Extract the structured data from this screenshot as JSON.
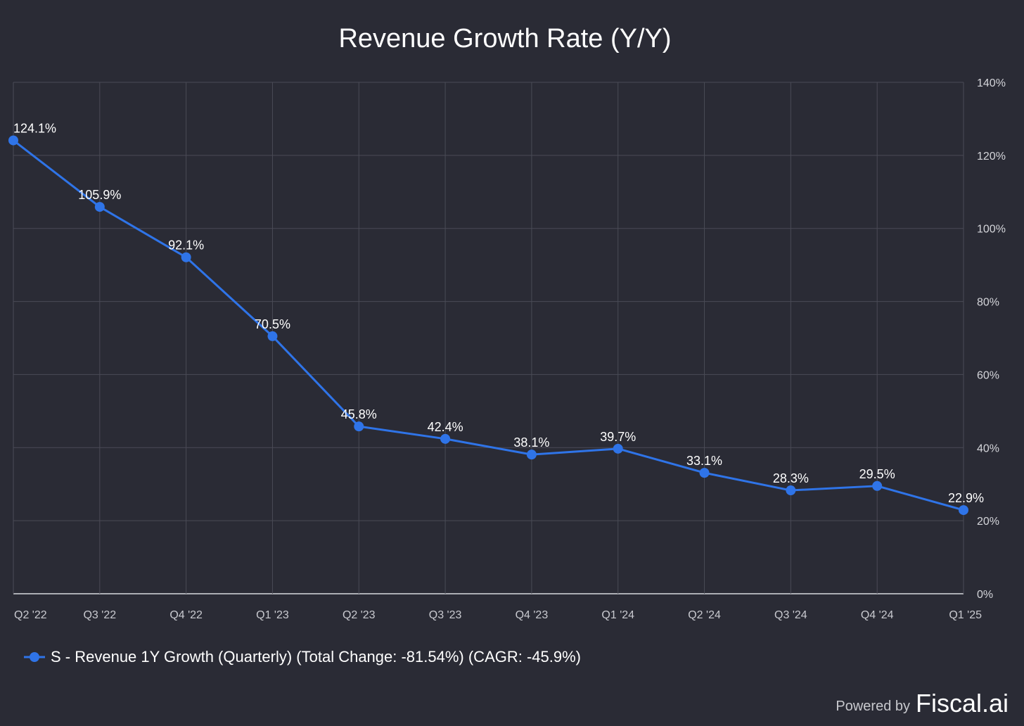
{
  "chart_data": {
    "type": "line",
    "title": "Revenue Growth Rate (Y/Y)",
    "categories": [
      "Q2 '22",
      "Q3 '22",
      "Q4 '22",
      "Q1 '23",
      "Q2 '23",
      "Q3 '23",
      "Q4 '23",
      "Q1 '24",
      "Q2 '24",
      "Q3 '24",
      "Q4 '24",
      "Q1 '25"
    ],
    "series": [
      {
        "name": "S - Revenue 1Y Growth (Quarterly) (Total Change: -81.54%) (CAGR: -45.9%)",
        "values": [
          124.1,
          105.9,
          92.1,
          70.5,
          45.8,
          42.4,
          38.1,
          39.7,
          33.1,
          28.3,
          29.5,
          22.9
        ],
        "labels": [
          "124.1%",
          "105.9%",
          "92.1%",
          "70.5%",
          "45.8%",
          "42.4%",
          "38.1%",
          "39.7%",
          "33.1%",
          "28.3%",
          "29.5%",
          "22.9%"
        ],
        "color": "#2f74e8"
      }
    ],
    "ylim": [
      0,
      140
    ],
    "yticks": [
      0,
      20,
      40,
      60,
      80,
      100,
      120,
      140
    ],
    "ytick_labels": [
      "0%",
      "20%",
      "40%",
      "60%",
      "80%",
      "100%",
      "120%",
      "140%"
    ],
    "y_axis_side": "right",
    "grid": true,
    "legend_position": "bottom-left",
    "background_color": "#2a2b35",
    "grid_color": "#4a4b56"
  },
  "branding": {
    "prefix": "Powered by",
    "name": "Fiscal.ai"
  }
}
